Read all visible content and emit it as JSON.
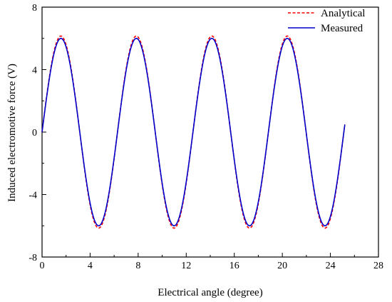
{
  "chart_data": {
    "type": "line",
    "title": "",
    "xlabel": "Electrical angle (degree)",
    "ylabel": "Induced electromotive force (V)",
    "xlim": [
      0,
      28
    ],
    "ylim": [
      -8,
      8
    ],
    "x_ticks": [
      "0",
      "4",
      "8",
      "12",
      "16",
      "20",
      "24",
      "28"
    ],
    "y_ticks": [
      "-8",
      "-4",
      "0",
      "4",
      "8"
    ],
    "grid": false,
    "legend_position": "top-right",
    "period": 6.28,
    "series": [
      {
        "name": "Analytical",
        "style": "dashed",
        "color": "#ff0000",
        "amplitude": 6.15,
        "shape": "sine",
        "x_start": 0,
        "x_end": 25.2,
        "x": [
          0,
          1.57,
          3.14,
          4.71,
          6.28,
          7.85,
          9.42,
          10.99,
          12.56,
          14.13,
          15.7,
          17.27,
          18.84,
          20.41,
          21.98,
          23.55,
          25.12
        ],
        "values": [
          0,
          6.15,
          0,
          -6.15,
          0,
          6.15,
          0,
          -6.15,
          0,
          6.15,
          0,
          -6.15,
          0,
          6.15,
          0,
          -6.15,
          0
        ]
      },
      {
        "name": "Measured",
        "style": "solid",
        "color": "#0000cc",
        "amplitude": 6.0,
        "shape": "sine",
        "x_start": 0,
        "x_end": 25.2,
        "x": [
          0,
          1.57,
          3.14,
          4.71,
          6.28,
          7.85,
          9.42,
          10.99,
          12.56,
          14.13,
          15.7,
          17.27,
          18.84,
          20.41,
          21.98,
          23.55,
          25.12
        ],
        "values": [
          0,
          6.0,
          0,
          -6.0,
          0,
          6.0,
          0,
          -6.0,
          0,
          6.0,
          0,
          -6.0,
          0,
          6.0,
          0,
          -6.0,
          0
        ]
      }
    ]
  }
}
